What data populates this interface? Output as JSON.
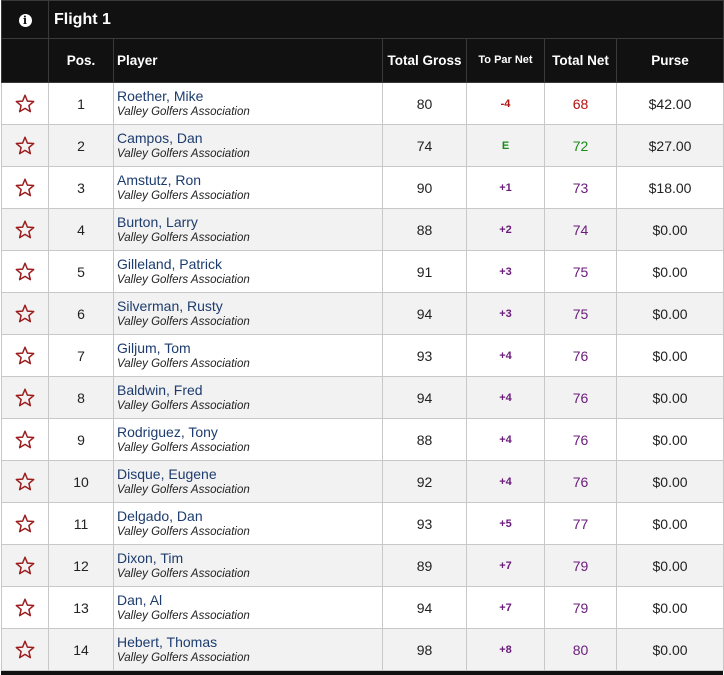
{
  "flight": {
    "info_icon": "info-icon",
    "title": "Flight 1"
  },
  "columns": {
    "pos": "Pos.",
    "player": "Player",
    "gross": "Total Gross",
    "topar": "To Par Net",
    "net": "Total Net",
    "purse": "Purse"
  },
  "colors": {
    "under_par": "#b01010",
    "even_par": "#1a8a1a",
    "over_par": "#6a1b7a",
    "star": "#9b1c1c"
  },
  "rows": [
    {
      "pos": "1",
      "name": "Roether, Mike",
      "club": "Valley Golfers Association",
      "gross": "80",
      "topar": "-4",
      "net": "68",
      "purse": "$42.00",
      "tone": "under"
    },
    {
      "pos": "2",
      "name": "Campos, Dan",
      "club": "Valley Golfers Association",
      "gross": "74",
      "topar": "E",
      "net": "72",
      "purse": "$27.00",
      "tone": "even"
    },
    {
      "pos": "3",
      "name": "Amstutz, Ron",
      "club": "Valley Golfers Association",
      "gross": "90",
      "topar": "+1",
      "net": "73",
      "purse": "$18.00",
      "tone": "over"
    },
    {
      "pos": "4",
      "name": "Burton, Larry",
      "club": "Valley Golfers Association",
      "gross": "88",
      "topar": "+2",
      "net": "74",
      "purse": "$0.00",
      "tone": "over"
    },
    {
      "pos": "5",
      "name": "Gilleland, Patrick",
      "club": "Valley Golfers Association",
      "gross": "91",
      "topar": "+3",
      "net": "75",
      "purse": "$0.00",
      "tone": "over"
    },
    {
      "pos": "6",
      "name": "Silverman, Rusty",
      "club": "Valley Golfers Association",
      "gross": "94",
      "topar": "+3",
      "net": "75",
      "purse": "$0.00",
      "tone": "over"
    },
    {
      "pos": "7",
      "name": "Giljum, Tom",
      "club": "Valley Golfers Association",
      "gross": "93",
      "topar": "+4",
      "net": "76",
      "purse": "$0.00",
      "tone": "over"
    },
    {
      "pos": "8",
      "name": "Baldwin, Fred",
      "club": "Valley Golfers Association",
      "gross": "94",
      "topar": "+4",
      "net": "76",
      "purse": "$0.00",
      "tone": "over"
    },
    {
      "pos": "9",
      "name": "Rodriguez, Tony",
      "club": "Valley Golfers Association",
      "gross": "88",
      "topar": "+4",
      "net": "76",
      "purse": "$0.00",
      "tone": "over"
    },
    {
      "pos": "10",
      "name": "Disque, Eugene",
      "club": "Valley Golfers Association",
      "gross": "92",
      "topar": "+4",
      "net": "76",
      "purse": "$0.00",
      "tone": "over"
    },
    {
      "pos": "11",
      "name": "Delgado, Dan",
      "club": "Valley Golfers Association",
      "gross": "93",
      "topar": "+5",
      "net": "77",
      "purse": "$0.00",
      "tone": "over"
    },
    {
      "pos": "12",
      "name": "Dixon, Tim",
      "club": "Valley Golfers Association",
      "gross": "89",
      "topar": "+7",
      "net": "79",
      "purse": "$0.00",
      "tone": "over"
    },
    {
      "pos": "13",
      "name": "Dan, Al",
      "club": "Valley Golfers Association",
      "gross": "94",
      "topar": "+7",
      "net": "79",
      "purse": "$0.00",
      "tone": "over"
    },
    {
      "pos": "14",
      "name": "Hebert, Thomas",
      "club": "Valley Golfers Association",
      "gross": "98",
      "topar": "+8",
      "net": "80",
      "purse": "$0.00",
      "tone": "over"
    }
  ]
}
